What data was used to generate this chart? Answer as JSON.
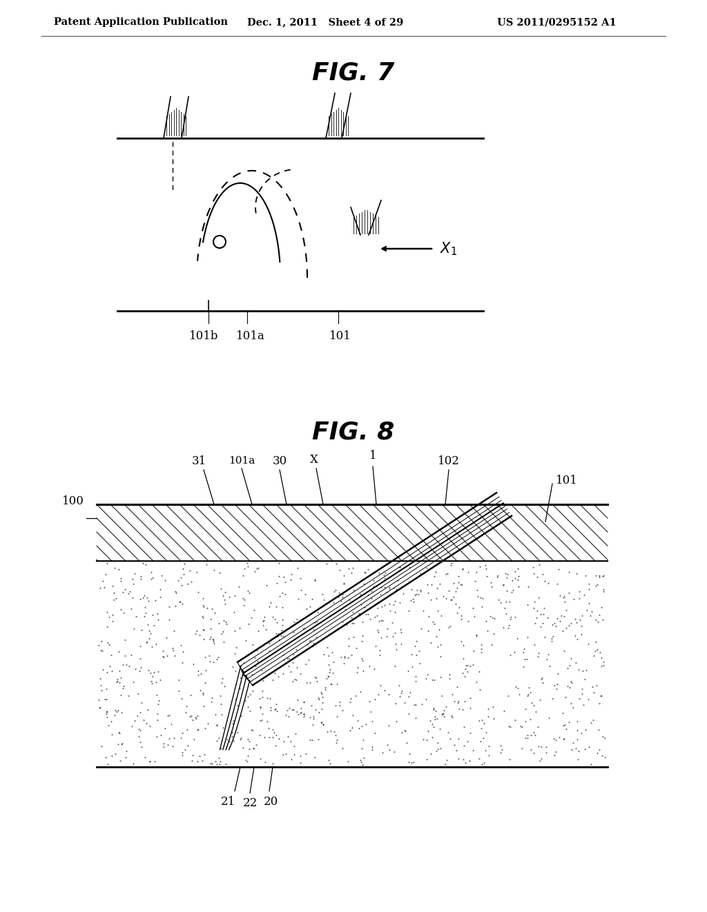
{
  "header_left": "Patent Application Publication",
  "header_center": "Dec. 1, 2011   Sheet 4 of 29",
  "header_right": "US 2011/0295152 A1",
  "fig7_title": "FIG. 7",
  "fig8_title": "FIG. 8",
  "bg_color": "#ffffff",
  "line_color": "#000000",
  "label_101b": "101b",
  "label_101a_fig7": "101a",
  "label_101_fig7": "101",
  "label_100": "100",
  "label_31": "31",
  "label_101a_fig8": "101a",
  "label_30": "30",
  "label_x_fig8": "X",
  "label_1": "1",
  "label_102": "102",
  "label_101_fig8": "101",
  "label_21": "21",
  "label_22": "22",
  "label_20": "20"
}
